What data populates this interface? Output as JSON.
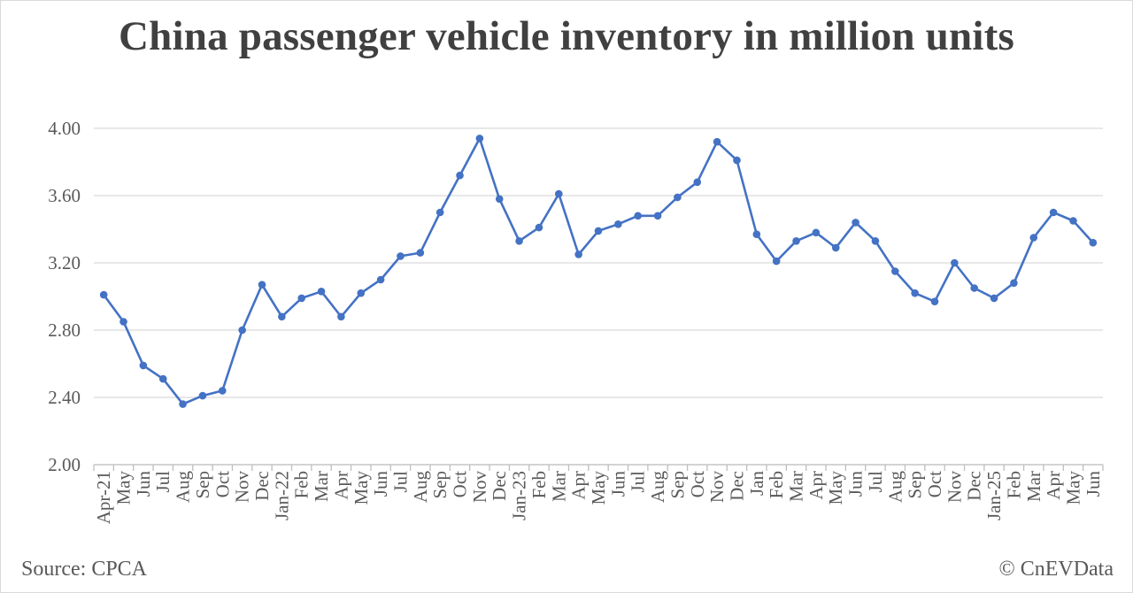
{
  "chart_data": {
    "type": "line",
    "title": "China passenger vehicle inventory in million units",
    "xlabel": "",
    "ylabel": "",
    "ylim": [
      2.0,
      4.0
    ],
    "yticks": [
      "2.00",
      "2.40",
      "2.80",
      "3.20",
      "3.60",
      "4.00"
    ],
    "grid": true,
    "line_color": "#4472c4",
    "categories": [
      "Apr-21",
      "May",
      "Jun",
      "Jul",
      "Aug",
      "Sep",
      "Oct",
      "Nov",
      "Dec",
      "Jan-22",
      "Feb",
      "Mar",
      "Apr",
      "May",
      "Jun",
      "Jul",
      "Aug",
      "Sep",
      "Oct",
      "Nov",
      "Dec",
      "Jan-23",
      "Feb",
      "Mar",
      "Apr",
      "May",
      "Jun",
      "Jul",
      "Aug",
      "Sep",
      "Oct",
      "Nov",
      "Dec",
      "Jan",
      "Feb",
      "Mar",
      "Apr",
      "May",
      "Jun",
      "Jul",
      "Aug",
      "Sep",
      "Oct",
      "Nov",
      "Dec",
      "Jan-25",
      "Feb",
      "Mar",
      "Apr",
      "May",
      "Jun"
    ],
    "series": [
      {
        "values": [
          3.01,
          2.85,
          2.59,
          2.51,
          2.36,
          2.41,
          2.44,
          2.8,
          3.07,
          2.88,
          2.99,
          3.03,
          2.88,
          3.02,
          3.1,
          3.24,
          3.26,
          3.5,
          3.72,
          3.94,
          3.58,
          3.33,
          3.41,
          3.61,
          3.25,
          3.39,
          3.43,
          3.48,
          3.48,
          3.59,
          3.68,
          3.92,
          3.81,
          3.37,
          3.21,
          3.33,
          3.38,
          3.29,
          3.44,
          3.33,
          3.15,
          3.02,
          2.97,
          3.2,
          3.05,
          2.99,
          3.08,
          3.35,
          3.5,
          3.45,
          3.32
        ]
      }
    ]
  },
  "footer": {
    "source": "Source: CPCA",
    "credit": "© CnEVData"
  }
}
